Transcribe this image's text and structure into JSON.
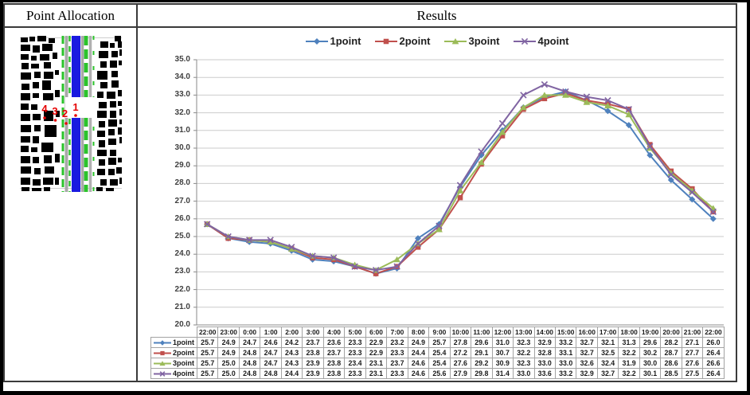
{
  "header": {
    "left_title": "Point Allocation",
    "right_title": "Results"
  },
  "map": {
    "point_labels": [
      "4",
      "3",
      "2",
      "1"
    ],
    "point_color": "#e60000"
  },
  "chart_data": {
    "type": "line",
    "categories": [
      "22:00",
      "23:00",
      "0:00",
      "1:00",
      "2:00",
      "3:00",
      "4:00",
      "5:00",
      "6:00",
      "7:00",
      "8:00",
      "9:00",
      "10:00",
      "11:00",
      "12:00",
      "13:00",
      "14:00",
      "15:00",
      "16:00",
      "17:00",
      "18:00",
      "19:00",
      "20:00",
      "21:00",
      "22:00"
    ],
    "series": [
      {
        "name": "1point",
        "color": "#4F81BD",
        "marker": "diamond",
        "values": [
          25.7,
          24.9,
          24.7,
          24.6,
          24.2,
          23.7,
          23.6,
          23.3,
          22.9,
          23.2,
          24.9,
          25.7,
          27.8,
          29.6,
          31.0,
          32.3,
          32.9,
          33.2,
          32.7,
          32.1,
          31.3,
          29.6,
          28.2,
          27.1,
          26.0
        ]
      },
      {
        "name": "2point",
        "color": "#C0504D",
        "marker": "square",
        "values": [
          25.7,
          24.9,
          24.8,
          24.7,
          24.3,
          23.8,
          23.7,
          23.3,
          22.9,
          23.3,
          24.4,
          25.4,
          27.2,
          29.1,
          30.7,
          32.2,
          32.8,
          33.1,
          32.7,
          32.5,
          32.2,
          30.2,
          28.7,
          27.7,
          26.4
        ]
      },
      {
        "name": "3point",
        "color": "#9BBB59",
        "marker": "triangle",
        "values": [
          25.7,
          25.0,
          24.8,
          24.7,
          24.3,
          23.9,
          23.8,
          23.4,
          23.1,
          23.7,
          24.6,
          25.4,
          27.6,
          29.2,
          30.9,
          32.3,
          33.0,
          33.0,
          32.6,
          32.4,
          31.9,
          30.0,
          28.6,
          27.6,
          26.6
        ]
      },
      {
        "name": "4point",
        "color": "#8064A2",
        "marker": "x",
        "values": [
          25.7,
          25.0,
          24.8,
          24.8,
          24.4,
          23.9,
          23.8,
          23.3,
          23.1,
          23.3,
          24.6,
          25.6,
          27.9,
          29.8,
          31.4,
          33.0,
          33.6,
          33.2,
          32.9,
          32.7,
          32.2,
          30.1,
          28.5,
          27.5,
          26.4
        ]
      }
    ],
    "title": "",
    "xlabel": "",
    "ylabel": "",
    "ylim": [
      20,
      35
    ],
    "ytick_step": 1.0,
    "ytick_labels": [
      "35.0",
      "34.0",
      "33.0",
      "32.0",
      "31.0",
      "30.0",
      "29.0",
      "28.0",
      "27.0",
      "26.0",
      "25.0",
      "24.0",
      "23.0",
      "22.0",
      "21.0",
      "20.0"
    ],
    "grid": true,
    "legend_position": "top",
    "data_table": true
  }
}
